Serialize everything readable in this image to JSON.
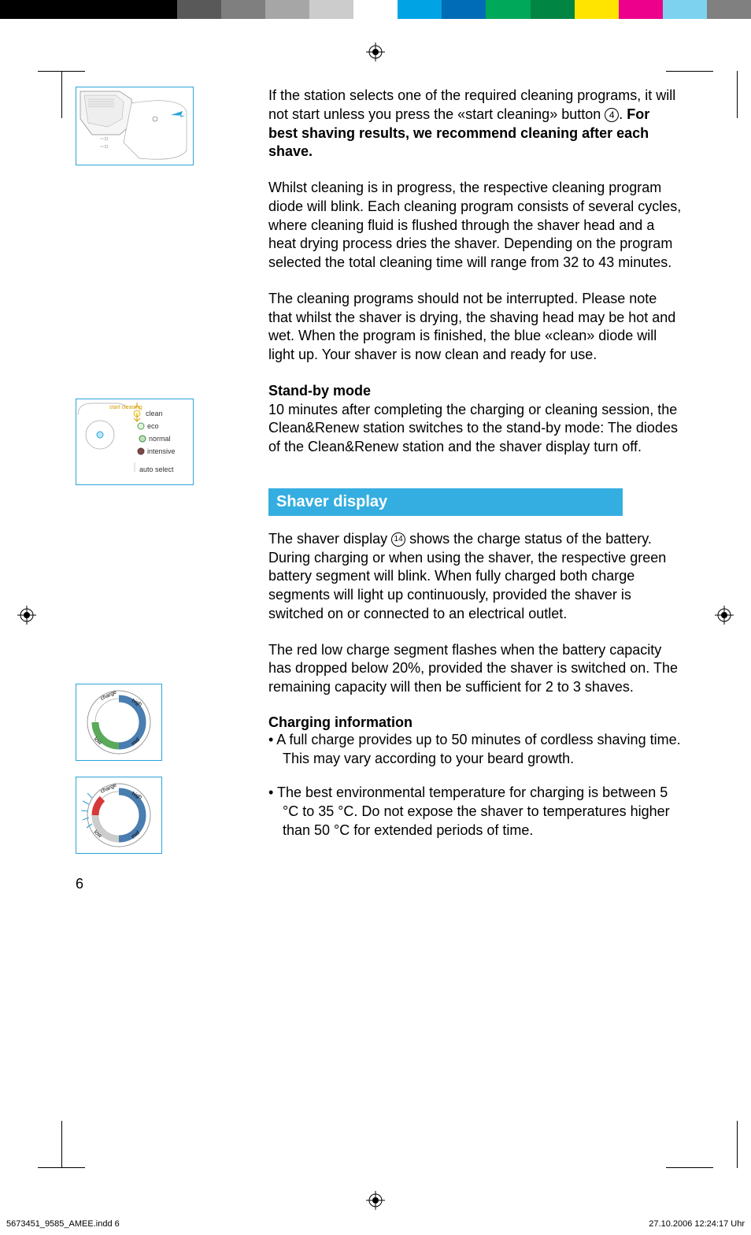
{
  "colorBar": [
    "#000000",
    "#000000",
    "#000000",
    "#000000",
    "#595959",
    "#7f7f7f",
    "#a6a6a6",
    "#cccccc",
    "#ffffff",
    "#00a4e4",
    "#006bb6",
    "#00a859",
    "#008542",
    "#ffe400",
    "#ec008c",
    "#7dd2f0",
    "#808080"
  ],
  "para1": {
    "pre": "If the station selects one of the required cleaning programs, it will not start unless you press the «start cleaning» button ",
    "circled": "4",
    "post1": ". ",
    "bold": "For best shaving results, we recommend cleaning after each shave."
  },
  "para2": "Whilst cleaning is in progress, the respective cleaning program diode will blink. Each cleaning program consists of several cycles, where cleaning fluid is flushed through the shaver head and a heat drying process dries the shaver. Depending on the program selected the total cleaning time will range from 32 to 43 minutes.",
  "para3": "The cleaning programs should not be interrupted. Please note that whilst the shaver is drying, the shaving head may be hot and wet. When the program is finished, the blue «clean» diode will light up. Your shaver is now clean and ready for use.",
  "standby": {
    "head": "Stand-by mode",
    "body": "10 minutes after completing the charging or cleaning session, the Clean&Renew station switches to the stand-by mode: The diodes of the Clean&Renew station and the shaver display turn off."
  },
  "sectionHeader": "Shaver display",
  "para4": {
    "pre": "The shaver display ",
    "circled": "14",
    "post": " shows the charge status of the battery. During charging or when using the shaver, the respective green battery segment will blink. When fully charged both charge segments will light up continuously, provided the shaver is switched on or connected to an electrical outlet."
  },
  "para5": "The red low charge segment flashes when the battery capacity has dropped below 20%, provided the shaver is switched on. The remaining capacity will then be sufficient for 2 to 3 shaves.",
  "charging": {
    "head": "Charging information",
    "b1": "• A full charge provides up to 50 minutes of cordless shaving time. This may vary according to your beard growth.",
    "b2": "• The best environmental temperature for charging is between 5 °C to 35 °C. Do not expose the shaver to temperatures higher than 50 °C for extended periods of time."
  },
  "fig2labels": {
    "clean": "clean",
    "eco": "eco",
    "normal": "normal",
    "intensive": "intensive",
    "auto": "auto select",
    "start": "start    cleaning"
  },
  "dialLabels": {
    "charge": "charge",
    "high": "high",
    "low": "low",
    "mid": "mid"
  },
  "pageNum": "6",
  "footerLeft": "5673451_9585_AMEE.indd   6",
  "footerRight": "27.10.2006   12:24:17 Uhr"
}
